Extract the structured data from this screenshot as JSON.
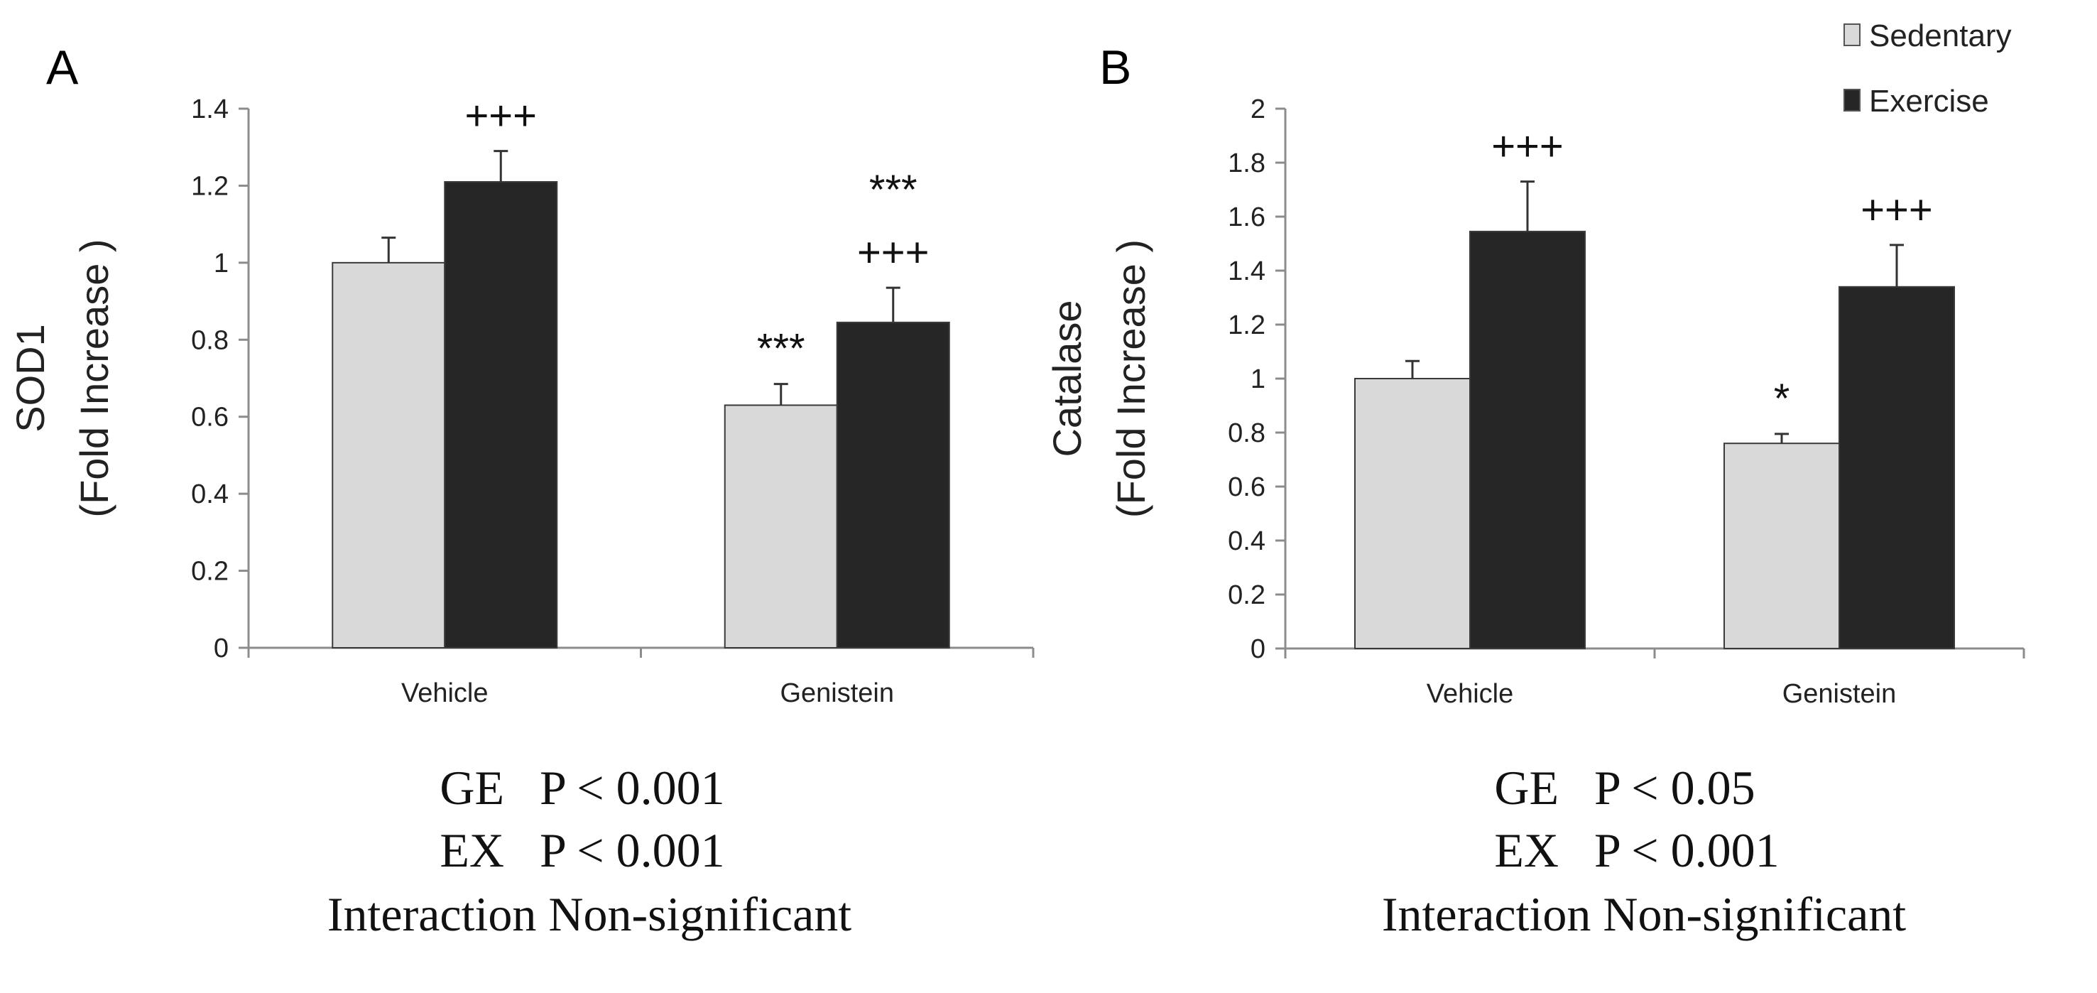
{
  "legend": {
    "items": [
      "Sedentary",
      "Exercise"
    ]
  },
  "colors": {
    "sedentary": "#d9d9d9",
    "exercise": "#262626",
    "axis": "#8c8c8c",
    "error": "#333333"
  },
  "chart_data": [
    {
      "type": "bar",
      "panel": "A",
      "categories": [
        "Vehicle",
        "Genistein"
      ],
      "series": [
        {
          "name": "Sedentary",
          "values": [
            1.0,
            0.63
          ],
          "errors": [
            0.065,
            0.055
          ]
        },
        {
          "name": "Exercise",
          "values": [
            1.21,
            0.845
          ],
          "errors": [
            0.08,
            0.09
          ]
        }
      ],
      "ylabel_lines": [
        "SOD1",
        "(Fold Increase )"
      ],
      "ylim": [
        0,
        1.4
      ],
      "yticks": [
        "0",
        "0.2",
        "0.4",
        "0.6",
        "0.8",
        "1",
        "1.2",
        "1.4"
      ],
      "annotations": [
        {
          "category": 0,
          "series": 1,
          "lines": [
            "+++"
          ]
        },
        {
          "category": 1,
          "series": 0,
          "lines": [
            "***"
          ]
        },
        {
          "category": 1,
          "series": 1,
          "lines": [
            "***",
            "+++"
          ]
        }
      ],
      "stats": [
        {
          "label": "GE",
          "value": "P < 0.001"
        },
        {
          "label": "EX",
          "value": "P < 0.001"
        },
        {
          "label": "Interaction",
          "value": "Non-significant"
        }
      ]
    },
    {
      "type": "bar",
      "panel": "B",
      "categories": [
        "Vehicle",
        "Genistein"
      ],
      "series": [
        {
          "name": "Sedentary",
          "values": [
            1.0,
            0.76
          ],
          "errors": [
            0.065,
            0.035
          ]
        },
        {
          "name": "Exercise",
          "values": [
            1.545,
            1.34
          ],
          "errors": [
            0.185,
            0.155
          ]
        }
      ],
      "ylabel_lines": [
        "Catalase",
        "(Fold Increase )"
      ],
      "ylim": [
        0,
        2
      ],
      "yticks": [
        "0",
        "0.2",
        "0.4",
        "0.6",
        "0.8",
        "1",
        "1.2",
        "1.4",
        "1.6",
        "1.8",
        "2"
      ],
      "annotations": [
        {
          "category": 0,
          "series": 1,
          "lines": [
            "+++"
          ]
        },
        {
          "category": 1,
          "series": 0,
          "lines": [
            "*"
          ]
        },
        {
          "category": 1,
          "series": 1,
          "lines": [
            "+++"
          ]
        }
      ],
      "stats": [
        {
          "label": "GE",
          "value": "P < 0.05"
        },
        {
          "label": "EX",
          "value": "P < 0.001"
        },
        {
          "label": "Interaction",
          "value": "Non-significant"
        }
      ]
    }
  ]
}
